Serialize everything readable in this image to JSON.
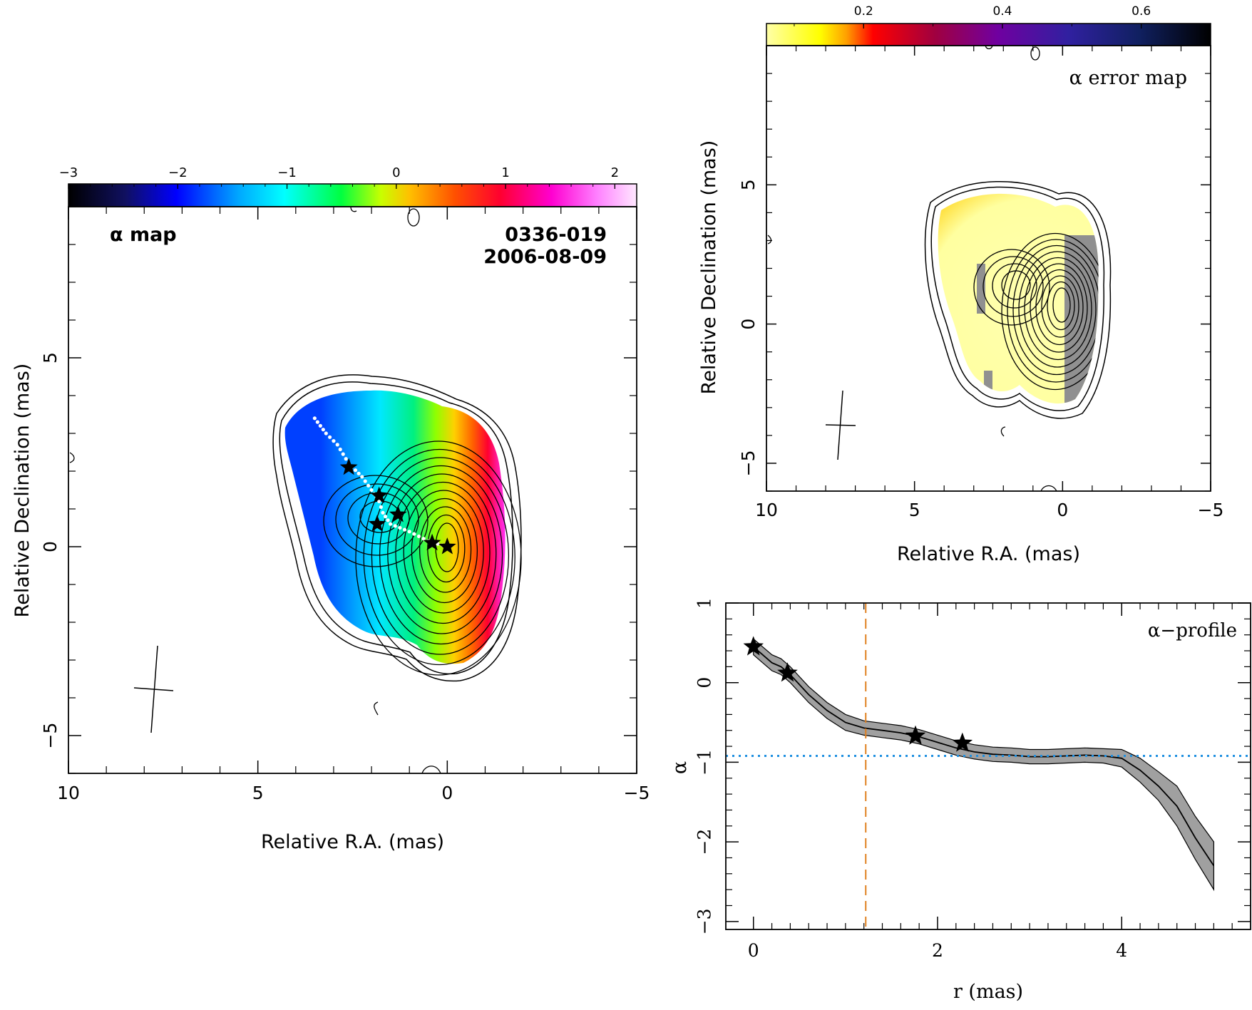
{
  "chart_data": [
    {
      "panel": "alpha-map",
      "type": "heatmap",
      "title": "α map",
      "source": "0336-019",
      "date": "2006-08-09",
      "xlabel": "Relative R.A. (mas)",
      "ylabel": "Relative Declination (mas)",
      "xlim": [
        10,
        -5
      ],
      "ylim": [
        -6,
        9
      ],
      "xticks": [
        10,
        5,
        0,
        -5
      ],
      "yticks": [
        -5,
        0,
        5
      ],
      "colorbar": {
        "range": [
          -3,
          2.2
        ],
        "ticks": [
          -3,
          -2,
          -1,
          0,
          1,
          2
        ],
        "colormap": "rainbow"
      },
      "stars": [
        {
          "x": 2.6,
          "y": 2.1
        },
        {
          "x": 1.8,
          "y": 1.35
        },
        {
          "x": 1.3,
          "y": 0.85
        },
        {
          "x": 1.85,
          "y": 0.6
        },
        {
          "x": 0.4,
          "y": 0.1
        },
        {
          "x": 0.0,
          "y": 0.0
        }
      ],
      "ridge": [
        {
          "x": 3.5,
          "y": 3.4
        },
        {
          "x": 3.2,
          "y": 3.0
        },
        {
          "x": 2.9,
          "y": 2.7
        },
        {
          "x": 2.6,
          "y": 2.2
        },
        {
          "x": 2.25,
          "y": 1.85
        },
        {
          "x": 2.0,
          "y": 1.5
        },
        {
          "x": 1.8,
          "y": 1.2
        },
        {
          "x": 1.7,
          "y": 0.9
        },
        {
          "x": 1.5,
          "y": 0.6
        },
        {
          "x": 1.0,
          "y": 0.4
        },
        {
          "x": 0.5,
          "y": 0.15
        },
        {
          "x": 0.0,
          "y": 0.0
        }
      ],
      "beam": {
        "x": 7.8,
        "y": -3.7,
        "major": 2.3,
        "minor": 0.6
      }
    },
    {
      "panel": "alpha-error-map",
      "type": "heatmap",
      "title": "α error map",
      "xlabel": "Relative R.A. (mas)",
      "ylabel": "Relative Declination (mas)",
      "xlim": [
        10,
        -5
      ],
      "ylim": [
        -6,
        10
      ],
      "xticks": [
        10,
        5,
        0,
        -5
      ],
      "yticks": [
        -5,
        0,
        5
      ],
      "colorbar": {
        "range": [
          0.06,
          0.7
        ],
        "ticks": [
          0.2,
          0.4,
          0.6
        ],
        "colormap": "heat"
      },
      "beam": {
        "x": 7.8,
        "y": -3.7,
        "major": 2.3,
        "minor": 0.6
      }
    },
    {
      "panel": "alpha-profile",
      "type": "line",
      "title": "α−profile",
      "xlabel": "r (mas)",
      "ylabel": "α",
      "xlim": [
        -0.3,
        5.4
      ],
      "ylim": [
        -3.1,
        1
      ],
      "xticks": [
        0,
        2,
        4
      ],
      "yticks": [
        1,
        0,
        -1,
        -2,
        -3
      ],
      "series": [
        {
          "x": [
            0,
            0.1,
            0.2,
            0.3,
            0.4,
            0.6,
            0.8,
            1.0,
            1.2,
            1.4,
            1.6,
            1.8,
            2.0,
            2.2,
            2.4,
            2.6,
            2.8,
            3.0,
            3.2,
            3.4,
            3.6,
            3.8,
            4.0,
            4.2,
            4.4,
            4.6,
            4.8,
            5.0
          ],
          "values": [
            0.45,
            0.35,
            0.25,
            0.2,
            0.1,
            -0.15,
            -0.35,
            -0.5,
            -0.57,
            -0.6,
            -0.63,
            -0.68,
            -0.75,
            -0.82,
            -0.87,
            -0.9,
            -0.91,
            -0.93,
            -0.93,
            -0.92,
            -0.91,
            -0.92,
            -0.95,
            -1.1,
            -1.3,
            -1.55,
            -1.95,
            -2.3
          ],
          "lower": [
            0.35,
            0.25,
            0.15,
            0.1,
            0.0,
            -0.25,
            -0.45,
            -0.6,
            -0.66,
            -0.69,
            -0.72,
            -0.77,
            -0.84,
            -0.91,
            -0.96,
            -0.99,
            -1.0,
            -1.02,
            -1.02,
            -1.01,
            -1.0,
            -1.01,
            -1.06,
            -1.25,
            -1.48,
            -1.8,
            -2.22,
            -2.6
          ],
          "upper": [
            0.55,
            0.45,
            0.35,
            0.3,
            0.2,
            -0.05,
            -0.25,
            -0.4,
            -0.48,
            -0.51,
            -0.54,
            -0.59,
            -0.66,
            -0.73,
            -0.78,
            -0.81,
            -0.82,
            -0.84,
            -0.84,
            -0.83,
            -0.82,
            -0.83,
            -0.84,
            -0.95,
            -1.12,
            -1.3,
            -1.68,
            -2.0
          ]
        }
      ],
      "stars": [
        {
          "x": 0.0,
          "y": 0.45
        },
        {
          "x": 0.37,
          "y": 0.12
        },
        {
          "x": 1.76,
          "y": -0.67
        },
        {
          "x": 2.27,
          "y": -0.76
        }
      ],
      "vline_x": 1.22,
      "hline_y": -0.92
    }
  ]
}
